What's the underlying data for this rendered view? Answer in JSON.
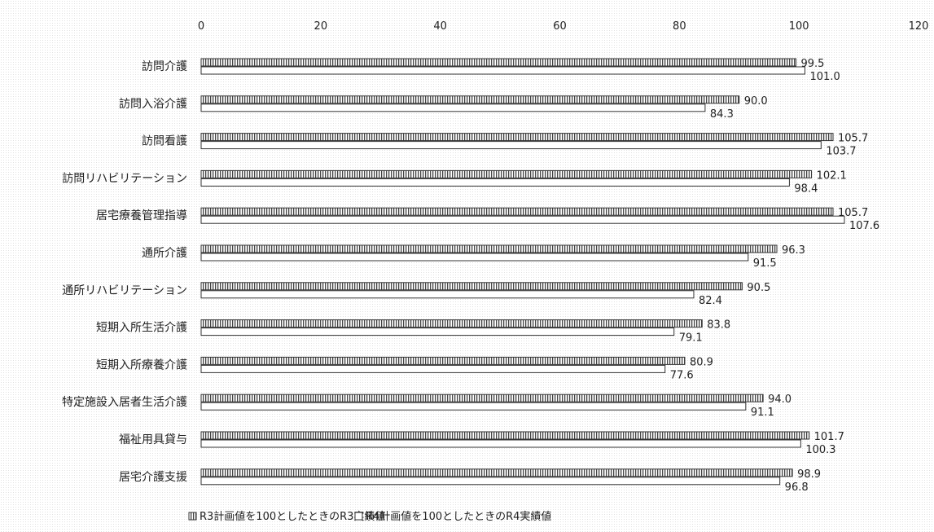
{
  "chart_data": {
    "type": "bar",
    "orientation": "horizontal",
    "title": "",
    "xlabel": "",
    "ylabel": "",
    "xlim": [
      0,
      120
    ],
    "x_ticks": [
      0,
      20,
      40,
      60,
      80,
      100,
      120
    ],
    "categories": [
      "訪問介護",
      "訪問入浴介護",
      "訪問看護",
      "訪問リハビリテーション",
      "居宅療養管理指導",
      "通所介護",
      "通所リハビリテーション",
      "短期入所生活介護",
      "短期入所療養介護",
      "特定施設入居者生活介護",
      "福祉用具貸与",
      "居宅介護支援"
    ],
    "series": [
      {
        "name": "R3計画値を100としたときのR3実績値",
        "values": [
          99.5,
          90.0,
          105.7,
          102.1,
          105.7,
          96.3,
          90.5,
          83.8,
          80.9,
          94.0,
          101.7,
          98.9
        ],
        "labels": [
          "99.5",
          "90.0",
          "105.7",
          "102.1",
          "105.7",
          "96.3",
          "90.5",
          "83.8",
          "80.9",
          "94.0",
          "101.7",
          "98.9"
        ]
      },
      {
        "name": "R4計画値を100としたときのR4実績値",
        "values": [
          101.0,
          84.3,
          103.7,
          98.4,
          107.6,
          91.5,
          82.4,
          79.1,
          77.6,
          91.1,
          100.3,
          96.8
        ],
        "labels": [
          "101.0",
          "84.3",
          "103.7",
          "98.4",
          "107.6",
          "91.5",
          "82.4",
          "79.1",
          "77.6",
          "91.1",
          "100.3",
          "96.8"
        ]
      }
    ],
    "legend_position": "bottom",
    "grid": false
  }
}
